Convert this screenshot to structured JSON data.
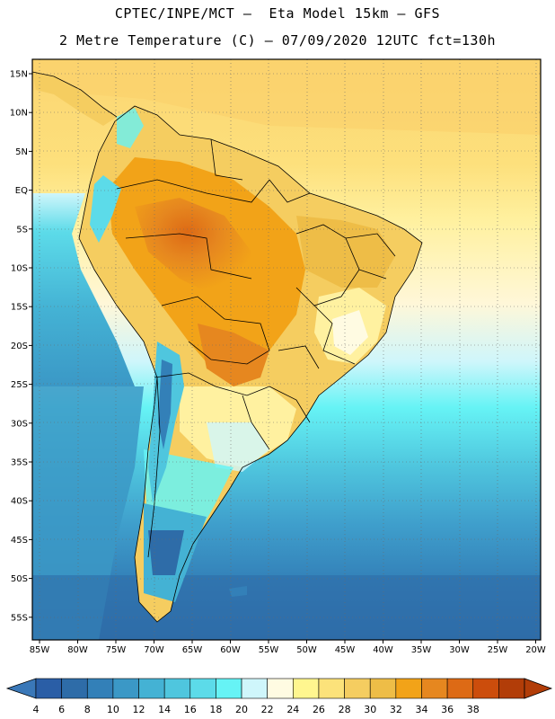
{
  "header": {
    "line1": "CPTEC/INPE/MCT –  Eta Model 15km – GFS",
    "line2": "2 Metre Temperature (C) – 07/09/2020 12UTC fct=130h"
  },
  "axes": {
    "lat_labels": [
      "15N",
      "10N",
      "5N",
      "EQ",
      "5S",
      "10S",
      "15S",
      "20S",
      "25S",
      "30S",
      "35S",
      "40S",
      "45S",
      "50S",
      "55S"
    ],
    "lon_labels": [
      "85W",
      "80W",
      "75W",
      "70W",
      "65W",
      "60W",
      "55W",
      "50W",
      "45W",
      "40W",
      "35W",
      "30W",
      "25W",
      "20W"
    ]
  },
  "colorbar": {
    "labels": [
      "4",
      "6",
      "8",
      "10",
      "12",
      "14",
      "16",
      "18",
      "20",
      "22",
      "24",
      "26",
      "28",
      "30",
      "32",
      "34",
      "36",
      "38"
    ],
    "colors": [
      "#2a5ea6",
      "#2e6ca8",
      "#3380b8",
      "#3b98c6",
      "#44b2d4",
      "#4fc6de",
      "#5cdbe9",
      "#66f3f5",
      "#cff6fb",
      "#fffbe2",
      "#fff68f",
      "#fce27a",
      "#f5cd60",
      "#eebd47",
      "#f2a318",
      "#e6871f",
      "#dd6a15",
      "#cc4d0c",
      "#b23d08"
    ],
    "low_color": "#3a78b8",
    "high_color": "#b23d08"
  },
  "map": {
    "region": "South America",
    "grid": "dotted"
  }
}
